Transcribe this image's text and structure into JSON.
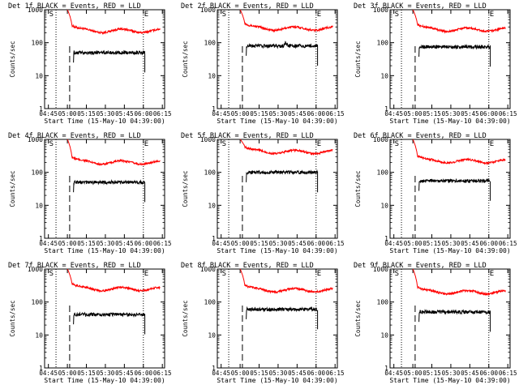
{
  "colors": {
    "background": "#ffffff",
    "axis": "#000000",
    "events": "#000000",
    "lld": "#ff0000"
  },
  "chart_data": [
    {
      "type": "line",
      "title": "Det 1f BLACK = Events, RED = LLD",
      "xlabel": "Start Time (15-May-10 04:39:00)",
      "ylabel": "Counts/sec",
      "ylog": true,
      "ylim": [
        1,
        1000
      ],
      "xlim": [
        4.7,
        6.28
      ],
      "x_ticks": [
        "04:45",
        "05:00",
        "05:15",
        "05:30",
        "05:45",
        "06:00",
        "06:15"
      ],
      "y_ticks": [
        "1",
        "10",
        "100",
        "1000"
      ],
      "markers": [
        "S",
        "E"
      ],
      "grid": false,
      "lld_base": 230,
      "events_base": 50,
      "spike_x": 5.6,
      "spike_h": 0
    },
    {
      "type": "line",
      "title": "Det 2f BLACK = Events, RED = LLD",
      "xlabel": "Start Time (15-May-10 04:39:00)",
      "ylabel": "Counts/sec",
      "ylog": true,
      "ylim": [
        1,
        1000
      ],
      "xlim": [
        4.7,
        6.28
      ],
      "x_ticks": [
        "04:45",
        "05:00",
        "05:15",
        "05:30",
        "05:45",
        "06:00",
        "06:15"
      ],
      "y_ticks": [
        "1",
        "10",
        "100",
        "1000"
      ],
      "markers": [
        "S",
        "E"
      ],
      "grid": false,
      "lld_base": 270,
      "events_base": 80,
      "spike_x": 5.6,
      "spike_h": 0.25
    },
    {
      "type": "line",
      "title": "Det 3f BLACK = Events, RED = LLD",
      "xlabel": "Start Time (15-May-10 04:39:00)",
      "ylabel": "Counts/sec",
      "ylog": true,
      "ylim": [
        1,
        1000
      ],
      "xlim": [
        4.7,
        6.28
      ],
      "x_ticks": [
        "04:45",
        "05:00",
        "05:15",
        "05:30",
        "05:45",
        "06:00",
        "06:15"
      ],
      "y_ticks": [
        "1",
        "10",
        "100",
        "1000"
      ],
      "markers": [
        "S",
        "E"
      ],
      "grid": false,
      "lld_base": 250,
      "events_base": 75,
      "spike_x": 5.6,
      "spike_h": 0
    },
    {
      "type": "line",
      "title": "Det 4f BLACK = Events, RED = LLD",
      "xlabel": "Start Time (15-May-10 04:39:00)",
      "ylabel": "Counts/sec",
      "ylog": true,
      "ylim": [
        1,
        1000
      ],
      "xlim": [
        4.7,
        6.28
      ],
      "x_ticks": [
        "04:45",
        "05:00",
        "05:15",
        "05:30",
        "05:45",
        "06:00",
        "06:15"
      ],
      "y_ticks": [
        "1",
        "10",
        "100",
        "1000"
      ],
      "markers": [
        "S",
        "E"
      ],
      "grid": false,
      "lld_base": 200,
      "events_base": 50,
      "spike_x": 5.6,
      "spike_h": 0
    },
    {
      "type": "line",
      "title": "Det 5f BLACK = Events, RED = LLD",
      "xlabel": "Start Time (15-May-10 04:39:00)",
      "ylabel": "Counts/sec",
      "ylog": true,
      "ylim": [
        1,
        1000
      ],
      "xlim": [
        4.7,
        6.28
      ],
      "x_ticks": [
        "04:45",
        "05:00",
        "05:15",
        "05:30",
        "05:45",
        "06:00",
        "06:15"
      ],
      "y_ticks": [
        "1",
        "10",
        "100",
        "1000"
      ],
      "markers": [
        "S",
        "E"
      ],
      "grid": false,
      "lld_base": 420,
      "events_base": 100,
      "spike_x": 5.6,
      "spike_h": 0
    },
    {
      "type": "line",
      "title": "Det 6f BLACK = Events, RED = LLD",
      "xlabel": "Start Time (15-May-10 04:39:00)",
      "ylabel": "Counts/sec",
      "ylog": true,
      "ylim": [
        1,
        1000
      ],
      "xlim": [
        4.7,
        6.28
      ],
      "x_ticks": [
        "04:45",
        "05:00",
        "05:15",
        "05:30",
        "05:45",
        "06:00",
        "06:15"
      ],
      "y_ticks": [
        "1",
        "10",
        "100",
        "1000"
      ],
      "markers": [
        "S",
        "E"
      ],
      "grid": false,
      "lld_base": 220,
      "events_base": 55,
      "spike_x": 5.6,
      "spike_h": 0
    },
    {
      "type": "line",
      "title": "Det 7f BLACK = Events, RED = LLD",
      "xlabel": "Start Time (15-May-10 04:39:00)",
      "ylabel": "Counts/sec",
      "ylog": true,
      "ylim": [
        1,
        1000
      ],
      "xlim": [
        4.7,
        6.28
      ],
      "x_ticks": [
        "04:45",
        "05:00",
        "05:15",
        "05:30",
        "05:45",
        "06:00",
        "06:15"
      ],
      "y_ticks": [
        "1",
        "10",
        "100",
        "1000"
      ],
      "markers": [
        "S",
        "E"
      ],
      "grid": false,
      "lld_base": 250,
      "events_base": 42,
      "spike_x": 5.6,
      "spike_h": 0
    },
    {
      "type": "line",
      "title": "Det 8f BLACK = Events, RED = LLD",
      "xlabel": "Start Time (15-May-10 04:39:00)",
      "ylabel": "Counts/sec",
      "ylog": true,
      "ylim": [
        1,
        1000
      ],
      "xlim": [
        4.7,
        6.28
      ],
      "x_ticks": [
        "04:45",
        "05:00",
        "05:15",
        "05:30",
        "05:45",
        "06:00",
        "06:15"
      ],
      "y_ticks": [
        "1",
        "10",
        "100",
        "1000"
      ],
      "markers": [
        "S",
        "E"
      ],
      "grid": false,
      "lld_base": 230,
      "events_base": 60,
      "spike_x": 5.6,
      "spike_h": 0
    },
    {
      "type": "line",
      "title": "Det 9f BLACK = Events, RED = LLD",
      "xlabel": "Start Time (15-May-10 04:39:00)",
      "ylabel": "Counts/sec",
      "ylog": true,
      "ylim": [
        1,
        1000
      ],
      "xlim": [
        4.7,
        6.28
      ],
      "x_ticks": [
        "04:45",
        "05:00",
        "05:15",
        "05:30",
        "05:45",
        "06:00",
        "06:15"
      ],
      "y_ticks": [
        "1",
        "10",
        "100",
        "1000"
      ],
      "markers": [
        "S",
        "E"
      ],
      "grid": false,
      "lld_base": 200,
      "events_base": 50,
      "spike_x": 5.6,
      "spike_h": 0
    }
  ]
}
